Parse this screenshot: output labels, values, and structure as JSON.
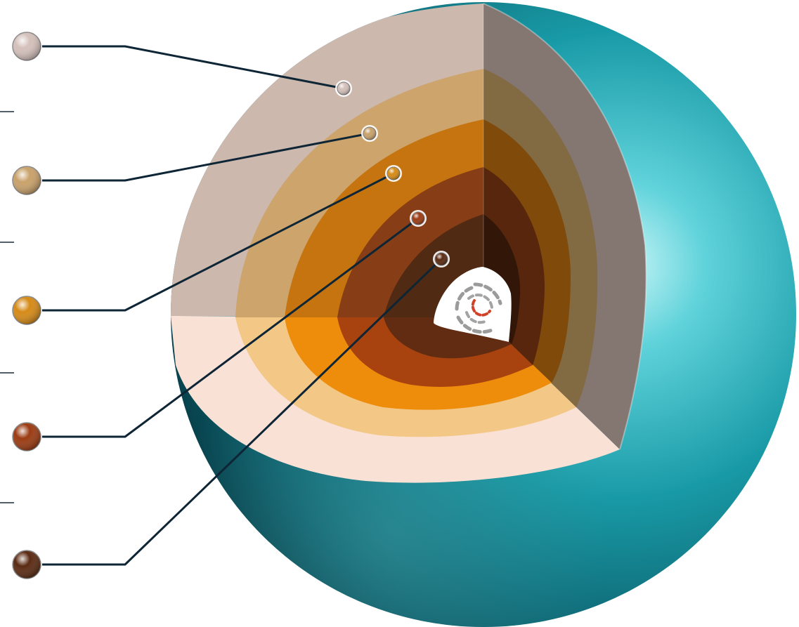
{
  "colors": {
    "background": "#ffffff",
    "sphere_teal": "#1a8c99",
    "sphere_teal_dark": "#0b4f5a",
    "sphere_highlight": "#bff4f6",
    "leader_line": "#0e2535",
    "separator": "#1a2a36",
    "core_white": "#ffffff",
    "core_gray": "#9a9a9a",
    "core_red": "#d0432a"
  },
  "layers": [
    {
      "id": "layer-1",
      "marker_color": "#d4c0bb",
      "face_color": "#cdb8ae",
      "side_color": "#847671",
      "front_color": "#f9e1d6",
      "icon": "sphere-marker-icon"
    },
    {
      "id": "layer-2",
      "marker_color": "#c9a16a",
      "face_color": "#cda46c",
      "side_color": "#826a43",
      "front_color": "#f3c887",
      "icon": "sphere-marker-icon"
    },
    {
      "id": "layer-3",
      "marker_color": "#d68a16",
      "face_color": "#c67410",
      "side_color": "#7f4a0a",
      "front_color": "#ee8d0c",
      "icon": "sphere-marker-icon"
    },
    {
      "id": "layer-4",
      "marker_color": "#9b3b12",
      "face_color": "#873d15",
      "side_color": "#57260c",
      "front_color": "#a8430f",
      "icon": "sphere-marker-icon"
    },
    {
      "id": "layer-5",
      "marker_color": "#5a2a12",
      "face_color": "#512a13",
      "side_color": "#321709",
      "front_color": "#612c12",
      "icon": "sphere-marker-icon"
    }
  ],
  "separators": 4,
  "core": {
    "icon": "core-rings-icon"
  }
}
